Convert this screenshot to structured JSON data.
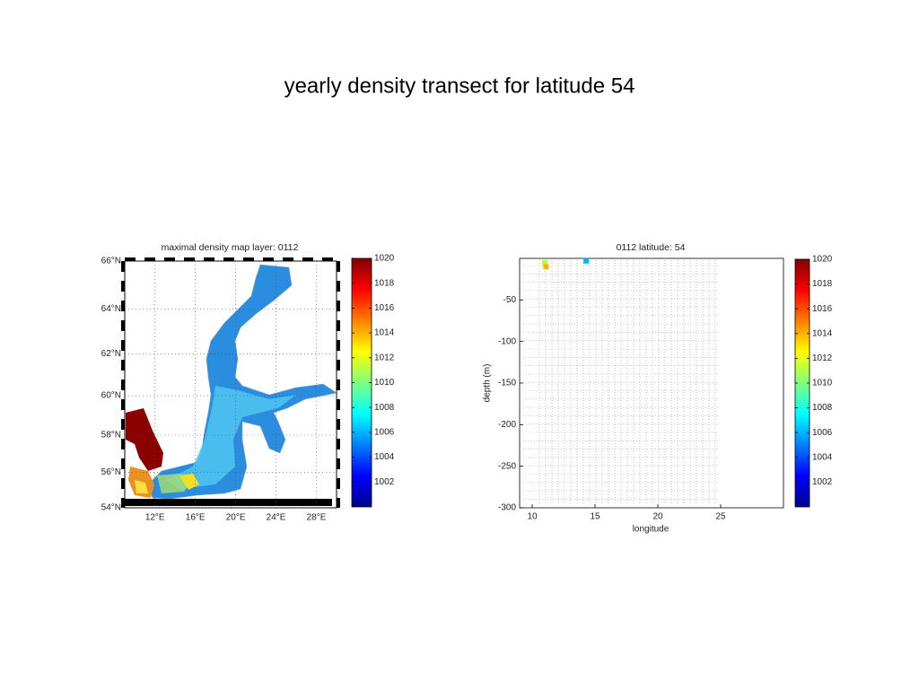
{
  "title": "yearly density transect for latitude 54",
  "map": {
    "title": "maximal density map layer: 0112",
    "latlim": [
      54,
      66
    ],
    "lonlim": [
      9,
      30
    ],
    "lat_ticks": [
      {
        "value": 54,
        "label": "54°N"
      },
      {
        "value": 56,
        "label": "56°N"
      },
      {
        "value": 58,
        "label": "58°N"
      },
      {
        "value": 60,
        "label": "60°N"
      },
      {
        "value": 62,
        "label": "62°N"
      },
      {
        "value": 64,
        "label": "64°N"
      },
      {
        "value": 66,
        "label": "66°N"
      }
    ],
    "lon_ticks": [
      {
        "value": 12,
        "label": "12°E"
      },
      {
        "value": 16,
        "label": "16°E"
      },
      {
        "value": 20,
        "label": "20°E"
      },
      {
        "value": 24,
        "label": "24°E"
      },
      {
        "value": 28,
        "label": "28°E"
      }
    ],
    "colorbar": {
      "lim": [
        1000,
        1020
      ],
      "ticks": [
        1002,
        1004,
        1006,
        1008,
        1010,
        1012,
        1014,
        1016,
        1018,
        1020
      ]
    }
  },
  "chart_data": {
    "type": "scatter",
    "title": "0112 latitude: 54",
    "x_label": "longitude",
    "y_label": "depth (m)",
    "xlim": [
      9,
      30
    ],
    "ylim": [
      -300,
      0
    ],
    "xticks": [
      10,
      15,
      20,
      25
    ],
    "yticks": [
      -300,
      -250,
      -200,
      -150,
      -100,
      -50
    ],
    "x": [
      14.3,
      11,
      11.1
    ],
    "values": [
      -3,
      -5,
      -10
    ],
    "density": [
      1006,
      1011,
      1014
    ],
    "colorbar": {
      "lim": [
        1000,
        1020
      ],
      "ticks": [
        1002,
        1004,
        1006,
        1008,
        1010,
        1012,
        1014,
        1016,
        1018,
        1020
      ]
    }
  }
}
